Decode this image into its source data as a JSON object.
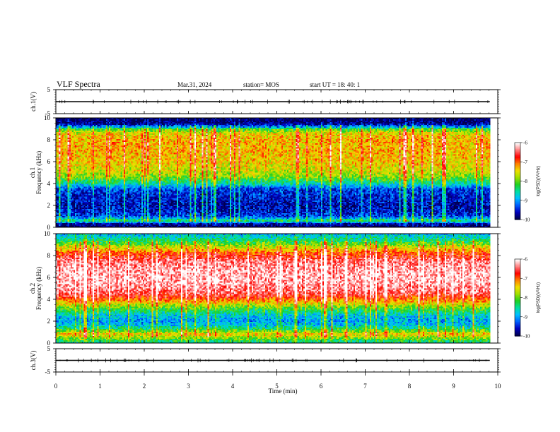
{
  "header": {
    "title": "VLF Spectra",
    "date": "Mar.31, 2024",
    "station": "station= MOS",
    "start": "start  UT  =   18: 40: 1"
  },
  "colors": {
    "colormap": [
      "#000050",
      "#0000c0",
      "#0060ff",
      "#00c0ff",
      "#00e0a0",
      "#20d020",
      "#a0e000",
      "#f0e000",
      "#ff8000",
      "#ff0000",
      "#ff8080",
      "#ffffff"
    ]
  },
  "chart_data": [
    {
      "type": "line",
      "panel": "ch1-waveform",
      "ylabel": "ch.1(V)",
      "yticks": [
        "5",
        "-5"
      ],
      "ylim": [
        -5,
        5
      ],
      "xlim": [
        0,
        10
      ],
      "series_level": 0,
      "x_data_end": 9.82
    },
    {
      "type": "heatmap",
      "panel": "ch1-spectrogram",
      "ylabel_line1": "ch.1",
      "ylabel_line2": "Frequency (kHz)",
      "yticks": [
        "0",
        "2",
        "4",
        "6",
        "8",
        "10"
      ],
      "ylim": [
        0,
        10
      ],
      "xlim": [
        0,
        10
      ],
      "x_data_end": 9.82,
      "colorbar": {
        "label": "log(PSD)(V²/Hz)",
        "ticks": [
          "-6",
          "-7",
          "-8",
          "-9",
          "-10"
        ],
        "range": [
          -10,
          -6
        ]
      },
      "profile": [
        {
          "f": 0.0,
          "v": -10.0
        },
        {
          "f": 0.3,
          "v": -9.8
        },
        {
          "f": 0.6,
          "v": -8.3
        },
        {
          "f": 1.0,
          "v": -9.4
        },
        {
          "f": 1.5,
          "v": -9.6
        },
        {
          "f": 2.0,
          "v": -9.7
        },
        {
          "f": 2.5,
          "v": -9.6
        },
        {
          "f": 3.0,
          "v": -9.5
        },
        {
          "f": 3.5,
          "v": -9.4
        },
        {
          "f": 4.0,
          "v": -8.6
        },
        {
          "f": 4.6,
          "v": -7.9
        },
        {
          "f": 5.2,
          "v": -7.6
        },
        {
          "f": 6.0,
          "v": -7.4
        },
        {
          "f": 7.0,
          "v": -7.3
        },
        {
          "f": 8.0,
          "v": -7.3
        },
        {
          "f": 8.6,
          "v": -7.5
        },
        {
          "f": 9.0,
          "v": -8.2
        },
        {
          "f": 9.2,
          "v": -9.2
        },
        {
          "f": 9.5,
          "v": -9.9
        },
        {
          "f": 10.0,
          "v": -10.0
        }
      ]
    },
    {
      "type": "heatmap",
      "panel": "ch2-spectrogram",
      "ylabel_line1": "ch.2",
      "ylabel_line2": "Frequency (kHz)",
      "yticks": [
        "0",
        "2",
        "4",
        "6",
        "8",
        "10"
      ],
      "ylim": [
        0,
        10
      ],
      "xlim": [
        0,
        10
      ],
      "x_data_end": 9.82,
      "colorbar": {
        "label": "log(PSD)(V²/Hz)",
        "ticks": [
          "-6",
          "-7",
          "-8",
          "-9",
          "-10"
        ],
        "range": [
          -10,
          -6
        ]
      },
      "profile": [
        {
          "f": 0.0,
          "v": -8.6
        },
        {
          "f": 0.4,
          "v": -8.0
        },
        {
          "f": 0.8,
          "v": -7.4
        },
        {
          "f": 1.2,
          "v": -8.2
        },
        {
          "f": 1.6,
          "v": -8.8
        },
        {
          "f": 2.0,
          "v": -9.0
        },
        {
          "f": 2.5,
          "v": -8.8
        },
        {
          "f": 3.0,
          "v": -8.3
        },
        {
          "f": 3.5,
          "v": -7.7
        },
        {
          "f": 4.0,
          "v": -7.0
        },
        {
          "f": 4.5,
          "v": -6.5
        },
        {
          "f": 5.5,
          "v": -6.2
        },
        {
          "f": 6.5,
          "v": -6.2
        },
        {
          "f": 7.5,
          "v": -6.4
        },
        {
          "f": 8.2,
          "v": -6.9
        },
        {
          "f": 8.7,
          "v": -7.5
        },
        {
          "f": 9.2,
          "v": -8.2
        },
        {
          "f": 9.6,
          "v": -8.6
        },
        {
          "f": 10.0,
          "v": -8.9
        }
      ]
    },
    {
      "type": "line",
      "panel": "ch3-waveform",
      "ylabel": "ch.3(V)",
      "yticks": [
        "5",
        "-5"
      ],
      "ylim": [
        -5,
        5
      ],
      "xlim": [
        0,
        10
      ],
      "series_level": 0,
      "x_data_end": 9.82,
      "xlabel": "Time (min)",
      "xticks": [
        "0",
        "1",
        "2",
        "3",
        "4",
        "5",
        "6",
        "7",
        "8",
        "9",
        "10"
      ]
    }
  ]
}
